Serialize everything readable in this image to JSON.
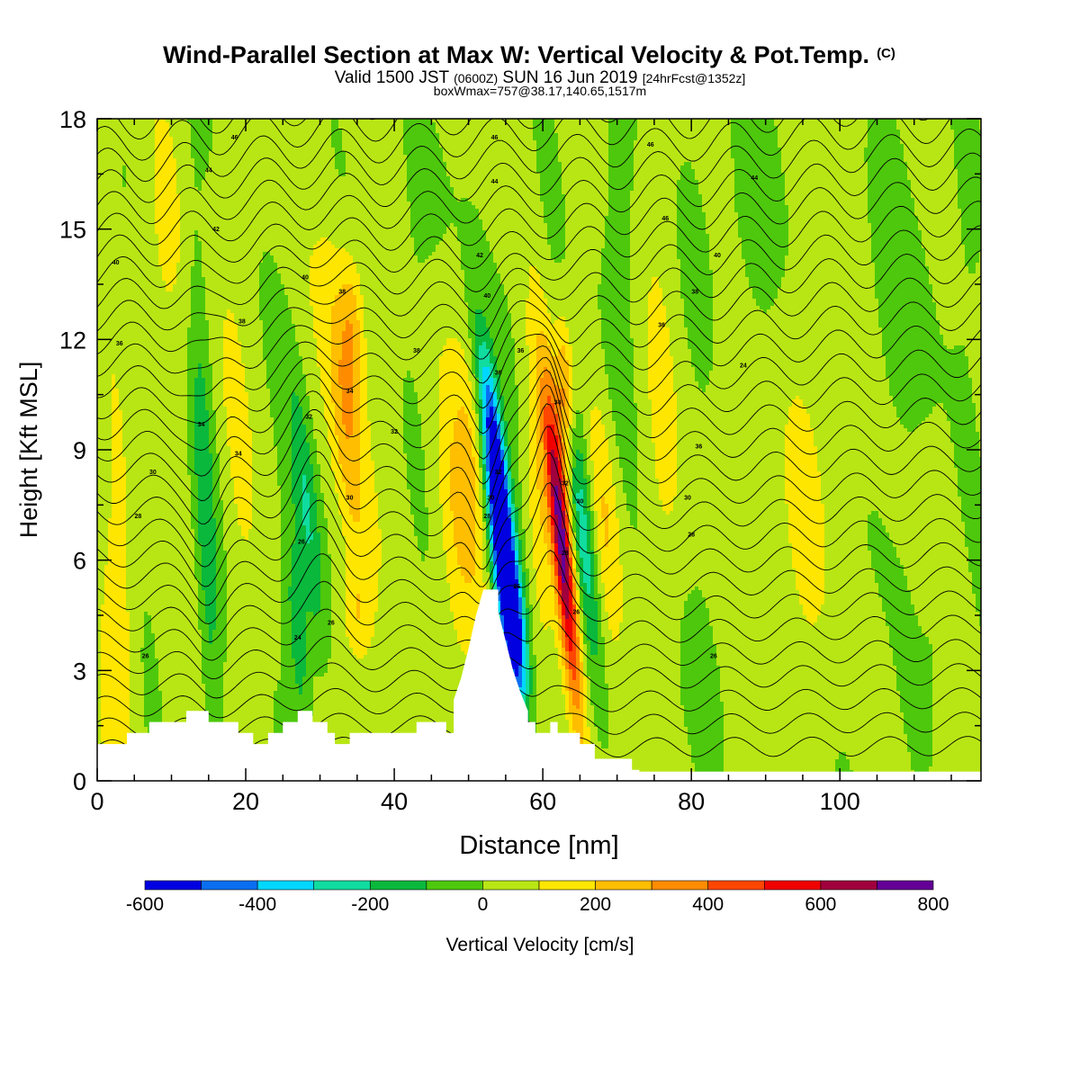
{
  "chart_data": {
    "type": "heatmap",
    "title": "Wind-Parallel Section at Max W: Vertical Velocity & Pot.Temp.",
    "title_mark": "(C)",
    "subtitle": {
      "part1": "Valid 1500 JST",
      "part2": "(0600Z)",
      "part3": "SUN 16 Jun 2019",
      "part4": "[24hrFcst@1352z]"
    },
    "subtitle2": "boxWmax=757@38.17,140.65,1517m",
    "xlabel": "Distance [nm]",
    "ylabel": "Height [Kft MSL]",
    "xlim": [
      0,
      119
    ],
    "ylim": [
      0,
      18
    ],
    "x_ticks": [
      0,
      20,
      40,
      60,
      80,
      100
    ],
    "y_ticks": [
      0,
      3,
      6,
      9,
      12,
      15,
      18
    ],
    "colorbar": {
      "label": "Vertical Velocity [cm/s]",
      "levels": [
        -600,
        -500,
        -400,
        -300,
        -200,
        -100,
        0,
        100,
        200,
        300,
        400,
        500,
        600,
        700,
        800
      ],
      "tick_labels": [
        -600,
        -400,
        -200,
        0,
        200,
        400,
        600,
        800
      ],
      "colors": [
        "#0000e0",
        "#0a6ef0",
        "#00d7ff",
        "#10dca0",
        "#0ab83c",
        "#4ec80c",
        "#b8e614",
        "#ffe600",
        "#ffbe00",
        "#ff8c00",
        "#ff4600",
        "#f00000",
        "#a0003c",
        "#640096"
      ]
    },
    "terrain": [
      [
        0,
        1.0
      ],
      [
        4,
        1.0
      ],
      [
        4,
        1.3
      ],
      [
        7,
        1.3
      ],
      [
        7,
        1.6
      ],
      [
        12,
        1.6
      ],
      [
        12,
        1.9
      ],
      [
        15,
        1.9
      ],
      [
        15,
        1.6
      ],
      [
        19,
        1.6
      ],
      [
        19,
        1.3
      ],
      [
        21,
        1.3
      ],
      [
        21,
        1.0
      ],
      [
        23,
        1.0
      ],
      [
        23,
        1.3
      ],
      [
        25,
        1.3
      ],
      [
        25,
        1.6
      ],
      [
        27,
        1.6
      ],
      [
        27,
        1.9
      ],
      [
        29,
        1.9
      ],
      [
        29,
        1.6
      ],
      [
        31,
        1.6
      ],
      [
        31,
        1.3
      ],
      [
        32,
        1.3
      ],
      [
        32,
        1.0
      ],
      [
        34,
        1.0
      ],
      [
        34,
        1.3
      ],
      [
        43,
        1.3
      ],
      [
        43,
        1.6
      ],
      [
        47,
        1.6
      ],
      [
        47,
        1.3
      ],
      [
        48,
        1.3
      ],
      [
        48,
        2.2
      ],
      [
        49,
        2.8
      ],
      [
        50,
        3.6
      ],
      [
        51,
        4.5
      ],
      [
        52,
        5.2
      ],
      [
        54,
        5.2
      ],
      [
        54,
        4.6
      ],
      [
        55,
        3.8
      ],
      [
        56,
        3.0
      ],
      [
        57,
        2.4
      ],
      [
        58,
        1.9
      ],
      [
        58,
        1.6
      ],
      [
        59,
        1.6
      ],
      [
        59,
        1.3
      ],
      [
        61,
        1.3
      ],
      [
        61,
        1.6
      ],
      [
        62,
        1.6
      ],
      [
        62,
        1.3
      ],
      [
        65,
        1.3
      ],
      [
        65,
        1.0
      ],
      [
        67,
        1.0
      ],
      [
        67,
        0.6
      ],
      [
        72,
        0.6
      ],
      [
        72,
        0.3
      ],
      [
        73,
        0.3
      ],
      [
        73,
        0.25
      ],
      [
        119,
        0.25
      ]
    ],
    "w_features": [
      {
        "x": 54.5,
        "y": 6.5,
        "sx": 1.2,
        "sy": 2.6,
        "tilt": -0.55,
        "w": -780
      },
      {
        "x": 56.2,
        "y": 4.0,
        "sx": 1.3,
        "sy": 1.6,
        "tilt": -0.4,
        "w": -350
      },
      {
        "x": 53.3,
        "y": 9.6,
        "sx": 0.9,
        "sy": 1.8,
        "tilt": -0.6,
        "w": -280
      },
      {
        "x": 62.6,
        "y": 6.4,
        "sx": 1.0,
        "sy": 3.2,
        "tilt": -0.45,
        "w": 780
      },
      {
        "x": 63.0,
        "y": 10.6,
        "sx": 0.9,
        "sy": 1.4,
        "tilt": -0.2,
        "w": 330
      },
      {
        "x": 65.4,
        "y": 6.8,
        "sx": 1.2,
        "sy": 2.8,
        "tilt": -0.45,
        "w": -330
      },
      {
        "x": 59.5,
        "y": 7.5,
        "sx": 1.1,
        "sy": 2.6,
        "tilt": -0.3,
        "w": 170
      },
      {
        "x": 68.5,
        "y": 7.2,
        "sx": 1.4,
        "sy": 2.5,
        "tilt": -0.35,
        "w": 160
      },
      {
        "x": 49.5,
        "y": 6.8,
        "sx": 2.2,
        "sy": 2.5,
        "tilt": -0.35,
        "w": 190
      },
      {
        "x": 51.0,
        "y": 9.5,
        "sx": 1.4,
        "sy": 1.8,
        "tilt": -0.4,
        "w": 120
      },
      {
        "x": 33.5,
        "y": 9.8,
        "sx": 1.5,
        "sy": 3.2,
        "tilt": -0.4,
        "w": 260
      },
      {
        "x": 34.4,
        "y": 12.4,
        "sx": 1.1,
        "sy": 1.5,
        "tilt": -0.2,
        "w": 200
      },
      {
        "x": 34.8,
        "y": 4.4,
        "sx": 1.4,
        "sy": 1.0,
        "tilt": -0.2,
        "w": 160
      },
      {
        "x": 28.4,
        "y": 7.0,
        "sx": 1.2,
        "sy": 2.8,
        "tilt": -0.45,
        "w": -250
      },
      {
        "x": 27.0,
        "y": 4.0,
        "sx": 1.0,
        "sy": 2.0,
        "tilt": -0.35,
        "w": -200
      },
      {
        "x": 14.5,
        "y": 7.5,
        "sx": 1.0,
        "sy": 4.8,
        "tilt": -0.2,
        "w": -170
      },
      {
        "x": 3.0,
        "y": 4.5,
        "sx": 1.6,
        "sy": 3.5,
        "tilt": 0.0,
        "w": 120
      },
      {
        "x": 18.5,
        "y": 9.5,
        "sx": 1.4,
        "sy": 3.5,
        "tilt": -0.3,
        "w": 60
      },
      {
        "x": 8.0,
        "y": 14.0,
        "sx": 3.0,
        "sy": 2.5,
        "tilt": 0.1,
        "w": 60
      },
      {
        "x": 56.0,
        "y": 12.0,
        "sx": 1.5,
        "sy": 4.0,
        "tilt": -0.3,
        "w": -60
      },
      {
        "x": 45.0,
        "y": 15.5,
        "sx": 2.5,
        "sy": 2.0,
        "tilt": 0.0,
        "w": -60
      },
      {
        "x": 76.0,
        "y": 9.0,
        "sx": 2.2,
        "sy": 6.0,
        "tilt": -0.1,
        "w": 55
      },
      {
        "x": 80.0,
        "y": 3.0,
        "sx": 5.0,
        "sy": 2.0,
        "tilt": 0.0,
        "w": -60
      },
      {
        "x": 93.0,
        "y": 6.0,
        "sx": 7.0,
        "sy": 3.0,
        "tilt": 0.0,
        "w": 55
      },
      {
        "x": 113.0,
        "y": 4.5,
        "sx": 1.3,
        "sy": 1.8,
        "tilt": 0.0,
        "w": -60
      },
      {
        "x": 104.5,
        "y": 9.0,
        "sx": 2.2,
        "sy": 8.0,
        "tilt": 0.0,
        "w": -55
      },
      {
        "x": 87.0,
        "y": 15.5,
        "sx": 5.0,
        "sy": 2.5,
        "tilt": 0.0,
        "w": -70
      },
      {
        "x": 112.0,
        "y": 13.0,
        "sx": 5.0,
        "sy": 3.0,
        "tilt": 0.0,
        "w": -55
      },
      {
        "x": 70.0,
        "y": 14.0,
        "sx": 2.5,
        "sy": 4.0,
        "tilt": 0.0,
        "w": -60
      },
      {
        "x": 99.0,
        "y": 11.0,
        "sx": 3.0,
        "sy": 2.5,
        "tilt": 0.0,
        "w": 50
      }
    ],
    "w_background": 35,
    "contour_labels": [
      {
        "x": 18.5,
        "y": 17.5,
        "text": "46"
      },
      {
        "x": 53.5,
        "y": 17.5,
        "text": "46"
      },
      {
        "x": 74.5,
        "y": 17.3,
        "text": "46"
      },
      {
        "x": 15.0,
        "y": 16.6,
        "text": "44"
      },
      {
        "x": 53.5,
        "y": 16.3,
        "text": "44"
      },
      {
        "x": 88.5,
        "y": 16.4,
        "text": "44"
      },
      {
        "x": 16.0,
        "y": 15.0,
        "text": "42"
      },
      {
        "x": 51.5,
        "y": 14.3,
        "text": "42"
      },
      {
        "x": 76.5,
        "y": 15.3,
        "text": "46"
      },
      {
        "x": 2.5,
        "y": 14.1,
        "text": "40"
      },
      {
        "x": 28.0,
        "y": 13.7,
        "text": "40"
      },
      {
        "x": 52.5,
        "y": 13.2,
        "text": "40"
      },
      {
        "x": 83.5,
        "y": 14.3,
        "text": "40"
      },
      {
        "x": 33.0,
        "y": 13.3,
        "text": "38"
      },
      {
        "x": 80.5,
        "y": 13.3,
        "text": "38"
      },
      {
        "x": 19.5,
        "y": 12.5,
        "text": "38"
      },
      {
        "x": 76.0,
        "y": 12.4,
        "text": "36"
      },
      {
        "x": 3.0,
        "y": 11.9,
        "text": "36"
      },
      {
        "x": 43.0,
        "y": 11.7,
        "text": "38"
      },
      {
        "x": 57.0,
        "y": 11.7,
        "text": "36"
      },
      {
        "x": 87.0,
        "y": 11.3,
        "text": "24"
      },
      {
        "x": 54.0,
        "y": 11.1,
        "text": "36"
      },
      {
        "x": 34.0,
        "y": 10.6,
        "text": "34"
      },
      {
        "x": 62.0,
        "y": 10.3,
        "text": "34"
      },
      {
        "x": 28.5,
        "y": 9.9,
        "text": "32"
      },
      {
        "x": 14.0,
        "y": 9.7,
        "text": "34"
      },
      {
        "x": 40.0,
        "y": 9.5,
        "text": "32"
      },
      {
        "x": 81.0,
        "y": 9.1,
        "text": "36"
      },
      {
        "x": 19.0,
        "y": 8.9,
        "text": "34"
      },
      {
        "x": 54.0,
        "y": 8.4,
        "text": "32"
      },
      {
        "x": 7.5,
        "y": 8.4,
        "text": "30"
      },
      {
        "x": 63.0,
        "y": 8.1,
        "text": "32"
      },
      {
        "x": 34.0,
        "y": 7.7,
        "text": "30"
      },
      {
        "x": 53.0,
        "y": 7.7,
        "text": "30"
      },
      {
        "x": 65.0,
        "y": 7.6,
        "text": "30"
      },
      {
        "x": 79.5,
        "y": 7.7,
        "text": "30"
      },
      {
        "x": 5.5,
        "y": 7.2,
        "text": "28"
      },
      {
        "x": 52.5,
        "y": 7.2,
        "text": "28"
      },
      {
        "x": 80.0,
        "y": 6.7,
        "text": "28"
      },
      {
        "x": 27.5,
        "y": 6.5,
        "text": "26"
      },
      {
        "x": 63.0,
        "y": 6.2,
        "text": "28"
      },
      {
        "x": 56.5,
        "y": 5.3,
        "text": "26"
      },
      {
        "x": 64.5,
        "y": 4.6,
        "text": "26"
      },
      {
        "x": 31.5,
        "y": 4.3,
        "text": "26"
      },
      {
        "x": 27.0,
        "y": 3.9,
        "text": "24"
      },
      {
        "x": 6.5,
        "y": 3.4,
        "text": "26"
      },
      {
        "x": 83.0,
        "y": 3.4,
        "text": "26"
      }
    ]
  }
}
